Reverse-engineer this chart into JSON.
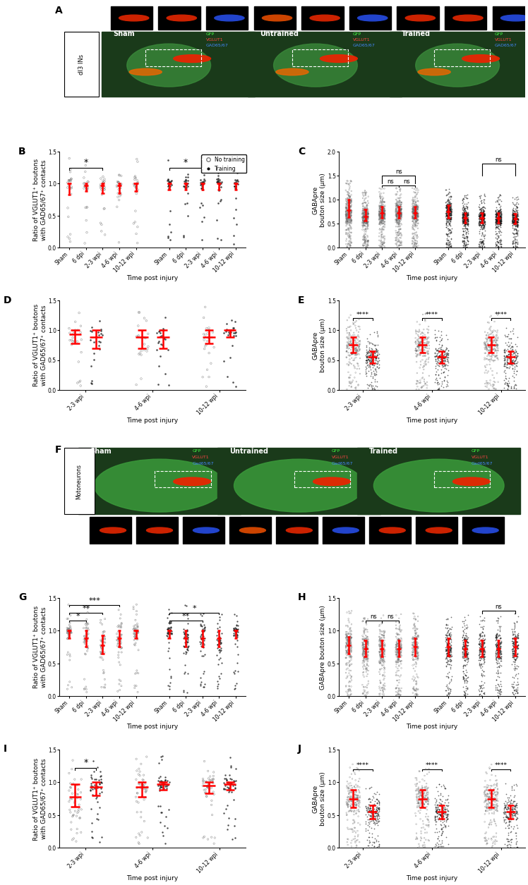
{
  "panel_B": {
    "ylabel": "Ratio of VGLUT1⁺ boutons\nwith GAD65/67⁺ contacts",
    "xlabel": "Time post injury",
    "ylim": [
      0.0,
      1.5
    ],
    "yticks": [
      0.0,
      0.5,
      1.0,
      1.5
    ],
    "cats_nt": [
      "Sham",
      "6 dpi",
      "2-3 wpi",
      "4-6 wpi",
      "10-12 wpi"
    ],
    "cats_t": [
      "Sham",
      "6 dpi",
      "2-3 wpi",
      "4-6 wpi",
      "10-12 wpi"
    ],
    "med_nt": [
      1.0,
      0.97,
      0.97,
      0.97,
      1.0
    ],
    "q1_nt": [
      0.83,
      0.88,
      0.85,
      0.85,
      0.88
    ],
    "q3_nt": [
      1.0,
      1.0,
      1.0,
      1.0,
      1.0
    ],
    "med_t": [
      1.0,
      1.0,
      1.0,
      1.0,
      1.0
    ],
    "q1_t": [
      0.9,
      0.9,
      0.9,
      0.9,
      0.9
    ],
    "q3_t": [
      1.0,
      1.0,
      1.0,
      1.0,
      1.0
    ]
  },
  "panel_C": {
    "ylabel": "GABApre\nbouton size (μm)",
    "xlabel": "Time post injury",
    "ylim": [
      0.0,
      2.0
    ],
    "yticks": [
      0.0,
      0.5,
      1.0,
      1.5,
      2.0
    ],
    "cats_nt": [
      "Sham",
      "6 dpi",
      "2-3 wpi",
      "4-6 wpi",
      "10-12 wpi"
    ],
    "cats_t": [
      "Sham",
      "6 dpi",
      "2-3 wpi",
      "4-6 wpi",
      "10-12 wpi"
    ],
    "med_nt": [
      0.78,
      0.65,
      0.72,
      0.72,
      0.72
    ],
    "q1_nt": [
      0.63,
      0.55,
      0.62,
      0.62,
      0.62
    ],
    "q3_nt": [
      1.0,
      0.8,
      0.85,
      0.85,
      0.85
    ],
    "med_t": [
      0.75,
      0.62,
      0.62,
      0.62,
      0.6
    ],
    "q1_t": [
      0.62,
      0.52,
      0.52,
      0.52,
      0.5
    ],
    "q3_t": [
      0.88,
      0.72,
      0.72,
      0.72,
      0.7
    ]
  },
  "panel_D": {
    "ylabel": "Ratio of VGLUT1⁺ boutons\nwith GAD65/67⁺ contacts",
    "xlabel": "Time post injury",
    "ylim": [
      0.0,
      1.5
    ],
    "yticks": [
      0.0,
      0.5,
      1.0,
      1.5
    ],
    "cats": [
      "2-3 wpi",
      "4-6 wpi",
      "10-12 wpi"
    ],
    "med_nt": [
      0.93,
      0.88,
      0.88
    ],
    "q1_nt": [
      0.78,
      0.7,
      0.78
    ],
    "q3_nt": [
      1.0,
      1.0,
      1.0
    ],
    "med_t": [
      0.88,
      0.88,
      1.0
    ],
    "q1_t": [
      0.7,
      0.7,
      0.88
    ],
    "q3_t": [
      1.0,
      1.0,
      1.0
    ]
  },
  "panel_E": {
    "ylabel": "GABApre\nbouton size (μm)",
    "xlabel": "Time post injury",
    "ylim": [
      0.0,
      1.5
    ],
    "yticks": [
      0.0,
      0.5,
      1.0,
      1.5
    ],
    "cats": [
      "2-3 wpi",
      "4-6 wpi",
      "10-12 wpi"
    ],
    "med_sham": [
      0.75,
      0.75,
      0.75
    ],
    "q1_sham": [
      0.62,
      0.62,
      0.62
    ],
    "q3_sham": [
      0.88,
      0.88,
      0.88
    ],
    "med_wpi": [
      0.55,
      0.55,
      0.55
    ],
    "q1_wpi": [
      0.45,
      0.45,
      0.45
    ],
    "q3_wpi": [
      0.65,
      0.65,
      0.65
    ],
    "sig": [
      "****",
      "****",
      "****"
    ]
  },
  "panel_G": {
    "ylabel": "Ratio of VGLUT1⁺ boutons\nwith GAD65/67⁺ contacts",
    "xlabel": "Time post injury",
    "ylim": [
      0.0,
      1.5
    ],
    "yticks": [
      0.0,
      0.5,
      1.0,
      1.5
    ],
    "cats_nt": [
      "Sham",
      "6 dpi",
      "2-3 wpi",
      "4-6 wpi",
      "10-12 wpi"
    ],
    "cats_t": [
      "Sham",
      "6 dpi",
      "2-3 wpi",
      "4-6 wpi",
      "10-12 wpi"
    ],
    "med_nt": [
      1.0,
      0.88,
      0.78,
      0.88,
      1.0
    ],
    "q1_nt": [
      0.88,
      0.75,
      0.65,
      0.75,
      0.88
    ],
    "q3_nt": [
      1.0,
      1.0,
      0.93,
      1.0,
      1.0
    ],
    "med_t": [
      1.0,
      0.88,
      0.88,
      0.88,
      1.0
    ],
    "q1_t": [
      0.88,
      0.75,
      0.75,
      0.75,
      0.88
    ],
    "q3_t": [
      1.0,
      1.0,
      1.0,
      1.0,
      1.0
    ]
  },
  "panel_H": {
    "ylabel": "GABApre bouton size (μm)",
    "xlabel": "Time post injury",
    "ylim": [
      0.0,
      1.5
    ],
    "yticks": [
      0.0,
      0.5,
      1.0,
      1.5
    ],
    "cats_nt": [
      "Sham",
      "6 dpi",
      "2-3 wpi",
      "4-6 wpi",
      "10-12 wpi"
    ],
    "cats_t": [
      "Sham",
      "6 dpi",
      "2-3 wpi",
      "4-6 wpi",
      "10-12 wpi"
    ],
    "med_nt": [
      0.78,
      0.72,
      0.72,
      0.72,
      0.75
    ],
    "q1_nt": [
      0.65,
      0.6,
      0.6,
      0.6,
      0.62
    ],
    "q3_nt": [
      0.9,
      0.85,
      0.85,
      0.85,
      0.88
    ],
    "med_t": [
      0.75,
      0.72,
      0.72,
      0.72,
      0.75
    ],
    "q1_t": [
      0.62,
      0.6,
      0.6,
      0.6,
      0.62
    ],
    "q3_t": [
      0.88,
      0.85,
      0.85,
      0.85,
      0.88
    ]
  },
  "panel_I": {
    "ylabel": "Ratio of VGLUT1⁺ boutons\nwith GAD65/67⁺ contacts",
    "xlabel": "Time post injury",
    "ylim": [
      0.0,
      1.5
    ],
    "yticks": [
      0.0,
      0.5,
      1.0,
      1.5
    ],
    "cats": [
      "2-3 wpi",
      "4-6 wpi",
      "10-12 wpi"
    ],
    "med_nt": [
      0.78,
      0.93,
      0.95
    ],
    "q1_nt": [
      0.63,
      0.78,
      0.83
    ],
    "q3_nt": [
      0.97,
      1.0,
      1.0
    ],
    "med_t": [
      0.93,
      0.97,
      0.97
    ],
    "q1_t": [
      0.8,
      0.88,
      0.88
    ],
    "q3_t": [
      1.0,
      1.0,
      1.0
    ]
  },
  "panel_J": {
    "ylabel": "GABApre\nbouton size (μm)",
    "xlabel": "Time post injury",
    "ylim": [
      0.0,
      1.5
    ],
    "yticks": [
      0.0,
      0.5,
      1.0,
      1.5
    ],
    "cats": [
      "2-3 wpi",
      "4-6 wpi",
      "10-12 wpi"
    ],
    "med_sham": [
      0.75,
      0.75,
      0.75
    ],
    "q1_sham": [
      0.62,
      0.62,
      0.62
    ],
    "q3_sham": [
      0.88,
      0.88,
      0.88
    ],
    "med_wpi": [
      0.55,
      0.55,
      0.55
    ],
    "q1_wpi": [
      0.45,
      0.45,
      0.45
    ],
    "q3_wpi": [
      0.65,
      0.65,
      0.65
    ],
    "sig": [
      "****",
      "****",
      "****"
    ]
  }
}
